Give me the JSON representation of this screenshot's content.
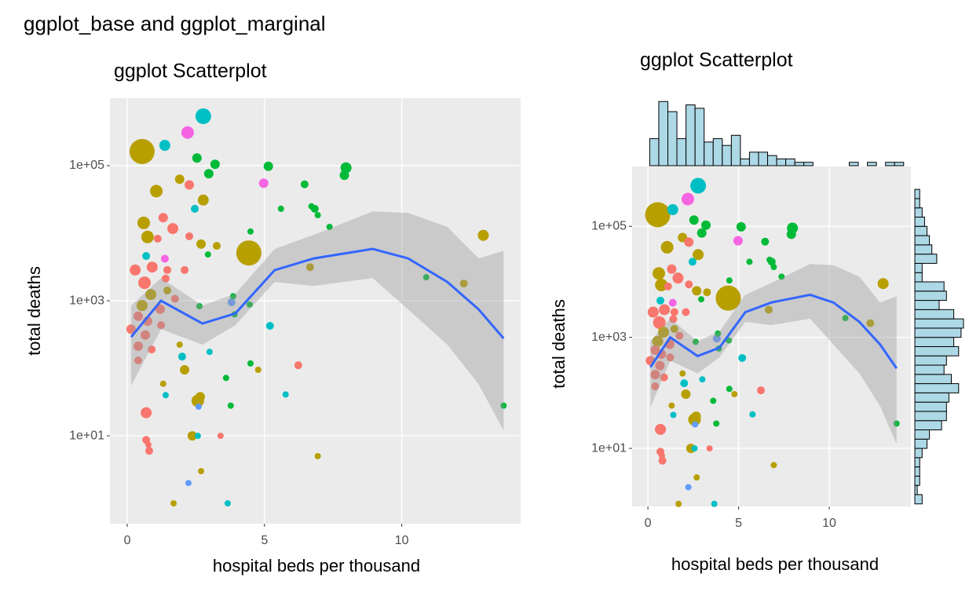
{
  "title": "ggplot_base and ggplot_marginal",
  "chart_data": [
    {
      "type": "scatter",
      "title": "ggplot Scatterplot",
      "x_label": "hospital beds per thousand",
      "y_label": "total deaths",
      "xlim": [
        -0.63,
        14.33
      ],
      "ylim": [
        0.5,
        1000000
      ],
      "y_scale": "log",
      "grid": true,
      "xticks": [
        0,
        5,
        10
      ],
      "yticks": [
        {
          "value": 10,
          "label": "1e+01"
        },
        {
          "value": 1000,
          "label": "1e+03"
        },
        {
          "value": 100000,
          "label": "1e+05"
        }
      ],
      "points": {
        "x": [
          0.54,
          2.77,
          1.37,
          2.2,
          2.54,
          3.2,
          2.97,
          1.91,
          1.06,
          2.26,
          5.14,
          4.97,
          7.97,
          7.91,
          6.46,
          2.77,
          2.46,
          5.6,
          6.71,
          6.83,
          6.94,
          0.6,
          1.31,
          1.66,
          0.74,
          4.43,
          12.97,
          7.37,
          4.49,
          2.69,
          3.26,
          2.26,
          1.11,
          0.69,
          1.37,
          0.29,
          0.91,
          1.46,
          2.09,
          2.94,
          6.66,
          10.89,
          12.26,
          0.63,
          1.4,
          0.86,
          1.46,
          0.54,
          1.2,
          1.74,
          3.8,
          3.86,
          4.46,
          3.91,
          2.63,
          5.2,
          0.4,
          0.74,
          0.14,
          1.23,
          0.66,
          0.4,
          0.89,
          1.91,
          2.0,
          3.0,
          0.4,
          2.09,
          4.49,
          4.77,
          6.23,
          3.6,
          1.31,
          1.4,
          2.57,
          2.66,
          5.77,
          2.6,
          3.77,
          0.69,
          13.71,
          2.37,
          0.69,
          2.57,
          3.4,
          0.77,
          0.8,
          6.94,
          2.69,
          2.23,
          1.69,
          3.66
        ],
        "y": [
          162000,
          540000,
          200000,
          310000,
          130000,
          105000,
          76000,
          63000,
          42000,
          52000,
          98000,
          55000,
          93000,
          72000,
          53000,
          31000,
          23000,
          23000,
          25000,
          23000,
          18500,
          14200,
          17000,
          11700,
          8800,
          5100,
          9300,
          12400,
          10600,
          6900,
          6500,
          9000,
          8300,
          4600,
          4200,
          2850,
          3150,
          2850,
          2850,
          4850,
          3150,
          2230,
          1800,
          1850,
          2130,
          1240,
          1420,
          850,
          750,
          1070,
          950,
          1170,
          880,
          630,
          830,
          425,
          590,
          500,
          380,
          435,
          310,
          213,
          190,
          224,
          149,
          175,
          131,
          95,
          118,
          95,
          111,
          72,
          59,
          40,
          33,
          38,
          41,
          27,
          28,
          22,
          28,
          10,
          8.7,
          10,
          10,
          7.4,
          6,
          5,
          3,
          2,
          1,
          1
        ],
        "size": [
          16,
          10,
          7,
          8,
          6,
          6,
          6,
          6,
          8,
          6,
          6,
          6,
          7,
          6,
          5,
          7,
          5,
          4,
          4,
          5,
          4,
          8,
          6,
          7,
          8,
          16,
          7,
          4,
          4,
          6,
          5,
          5,
          5,
          5,
          5,
          7,
          7,
          5,
          5,
          4,
          5,
          4,
          5,
          8,
          5,
          7,
          5,
          7,
          6,
          5,
          5,
          4,
          4,
          4,
          4,
          5,
          6,
          6,
          6,
          5,
          6,
          6,
          5,
          4,
          5,
          4,
          5,
          6,
          4,
          4,
          5,
          4,
          4,
          4,
          8,
          6,
          4,
          4,
          4,
          7,
          4,
          6,
          5,
          4,
          4,
          4,
          5,
          4,
          4,
          4,
          4,
          4
        ],
        "color": [
          "#B79F00",
          "#00BFC4",
          "#00BFC4",
          "#F564E3",
          "#00BA38",
          "#00BA38",
          "#00BA38",
          "#B79F00",
          "#B79F00",
          "#F8766D",
          "#00BA38",
          "#F564E3",
          "#00BA38",
          "#00BA38",
          "#00BA38",
          "#B79F00",
          "#00BFC4",
          "#00BA38",
          "#00BA38",
          "#00BA38",
          "#00BA38",
          "#B79F00",
          "#F8766D",
          "#F8766D",
          "#B79F00",
          "#B79F00",
          "#B79F00",
          "#00BA38",
          "#00BA38",
          "#B79F00",
          "#B79F00",
          "#F8766D",
          "#F8766D",
          "#00BFC4",
          "#F564E3",
          "#F8766D",
          "#F8766D",
          "#F8766D",
          "#F8766D",
          "#00BA38",
          "#B79F00",
          "#00BA38",
          "#B79F00",
          "#F8766D",
          "#F8766D",
          "#B79F00",
          "#B79F00",
          "#B79F00",
          "#F8766D",
          "#F8766D",
          "#619CFF",
          "#00BA38",
          "#00BA38",
          "#00BA38",
          "#00BA38",
          "#00BFC4",
          "#F8766D",
          "#F8766D",
          "#F8766D",
          "#F8766D",
          "#F8766D",
          "#F8766D",
          "#F8766D",
          "#B79F00",
          "#00BFC4",
          "#00BFC4",
          "#F8766D",
          "#B79F00",
          "#00BA38",
          "#B79F00",
          "#F8766D",
          "#00BA38",
          "#B79F00",
          "#00BFC4",
          "#B79F00",
          "#B79F00",
          "#00BFC4",
          "#619CFF",
          "#00BA38",
          "#F8766D",
          "#00BA38",
          "#B79F00",
          "#F8766D",
          "#00BFC4",
          "#F8766D",
          "#F8766D",
          "#F8766D",
          "#B79F00",
          "#B79F00",
          "#619CFF",
          "#B79F00",
          "#00BFC4"
        ]
      },
      "smooth": {
        "color": "#3366FF",
        "band_color": "#999999",
        "x": [
          0.14,
          1.23,
          2.74,
          3.94,
          5.37,
          6.8,
          8.94,
          10.23,
          11.66,
          12.8,
          13.71
        ],
        "y": [
          290,
          1000,
          460,
          650,
          2840,
          4240,
          5850,
          4240,
          1900,
          745,
          277
        ],
        "lower": [
          55,
          380,
          224,
          435,
          1900,
          1660,
          2170,
          745,
          224,
          58,
          12
        ],
        "upper": [
          850,
          2170,
          850,
          1270,
          5850,
          9500,
          21000,
          20000,
          12400,
          4240,
          5500
        ]
      }
    },
    {
      "type": "marginal",
      "title": "ggplot Scatterplot",
      "x_label": "hospital beds per thousand",
      "y_label": "total deaths",
      "xlim": [
        -0.87,
        14.5
      ],
      "ylim": [
        0.9,
        1200000
      ],
      "y_scale": "log",
      "grid": true,
      "xticks": [
        0,
        5,
        10
      ],
      "yticks": [
        {
          "value": 10,
          "label": "1e+01"
        },
        {
          "value": 1000,
          "label": "1e+03"
        },
        {
          "value": 100000,
          "label": "1e+05"
        }
      ],
      "x_histogram": {
        "color": "#ADD8E6",
        "bins": [
          0.1,
          0.6,
          1.1,
          1.6,
          2.1,
          2.6,
          3.1,
          3.6,
          4.1,
          4.6,
          5.1,
          5.6,
          6.1,
          6.6,
          7.1,
          7.6,
          8.1,
          8.6,
          9.1,
          9.6,
          10.1,
          10.6,
          11.1,
          11.6,
          12.1,
          12.6,
          13.1,
          13.6,
          14.1
        ],
        "counts": [
          8,
          19,
          16,
          8,
          18,
          17,
          7,
          8,
          6,
          9,
          2,
          4,
          4,
          3,
          2,
          2,
          1,
          1,
          0,
          0,
          0,
          0,
          1,
          0,
          1,
          0,
          1,
          1
        ]
      },
      "y_histogram": {
        "color": "#ADD8E6",
        "bins": [
          1,
          1.468,
          2.154,
          3.162,
          4.642,
          6.813,
          10,
          14.68,
          21.54,
          31.62,
          46.42,
          68.13,
          100,
          146.8,
          215.4,
          316.2,
          464.2,
          681.3,
          1000,
          1468,
          2154,
          3162,
          4642,
          6813,
          10000,
          14678,
          21544,
          31623,
          46416,
          68129,
          100000,
          146780,
          215440,
          316230,
          464160
        ],
        "counts": [
          3,
          1,
          2,
          2,
          2,
          3,
          5,
          6,
          11,
          13,
          13,
          14,
          18,
          15,
          12,
          13,
          18,
          16,
          19,
          20,
          16,
          10,
          13,
          12,
          3,
          3,
          9,
          7,
          6,
          5,
          4,
          3,
          2,
          2
        ]
      }
    }
  ]
}
